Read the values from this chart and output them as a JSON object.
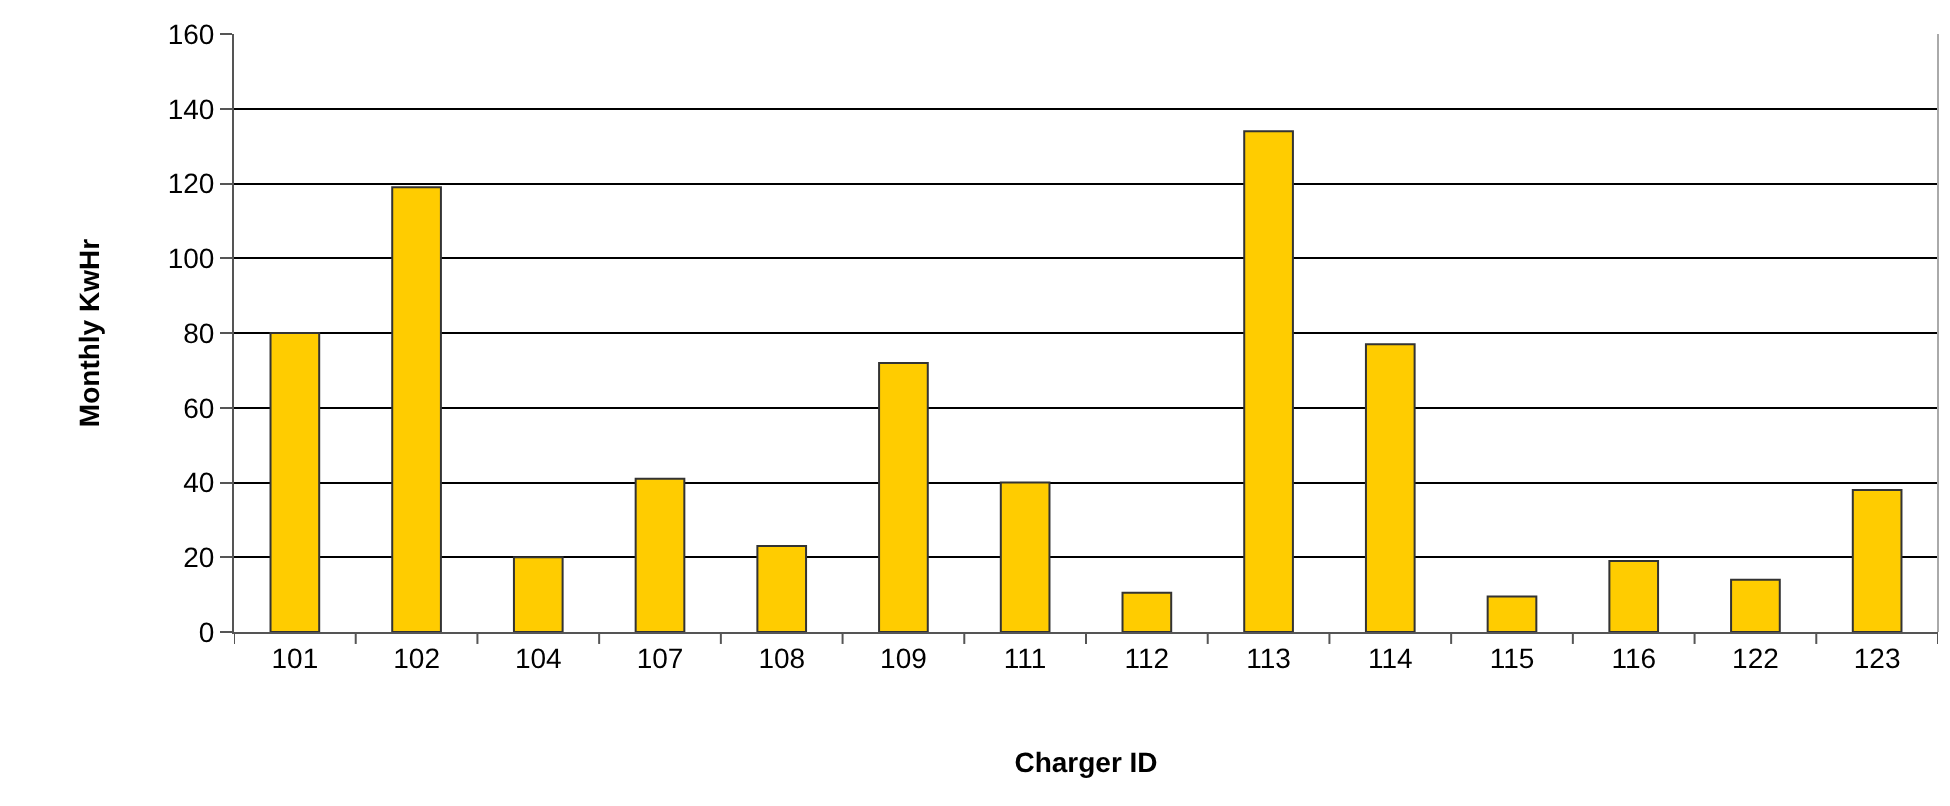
{
  "chart_data": {
    "type": "bar",
    "xlabel": "Charger ID",
    "ylabel": "Monthly KwHr",
    "categories": [
      "101",
      "102",
      "104",
      "107",
      "108",
      "109",
      "111",
      "112",
      "113",
      "114",
      "115",
      "116",
      "122",
      "123"
    ],
    "values": [
      80,
      119,
      20,
      41,
      23,
      72,
      40,
      10.5,
      134,
      77,
      9.5,
      19,
      14,
      38
    ],
    "color": "#ffcc00",
    "ylim": [
      0,
      160
    ],
    "yticks": [
      0,
      20,
      40,
      60,
      80,
      100,
      120,
      140,
      160
    ],
    "grid": "y",
    "legend": false
  }
}
